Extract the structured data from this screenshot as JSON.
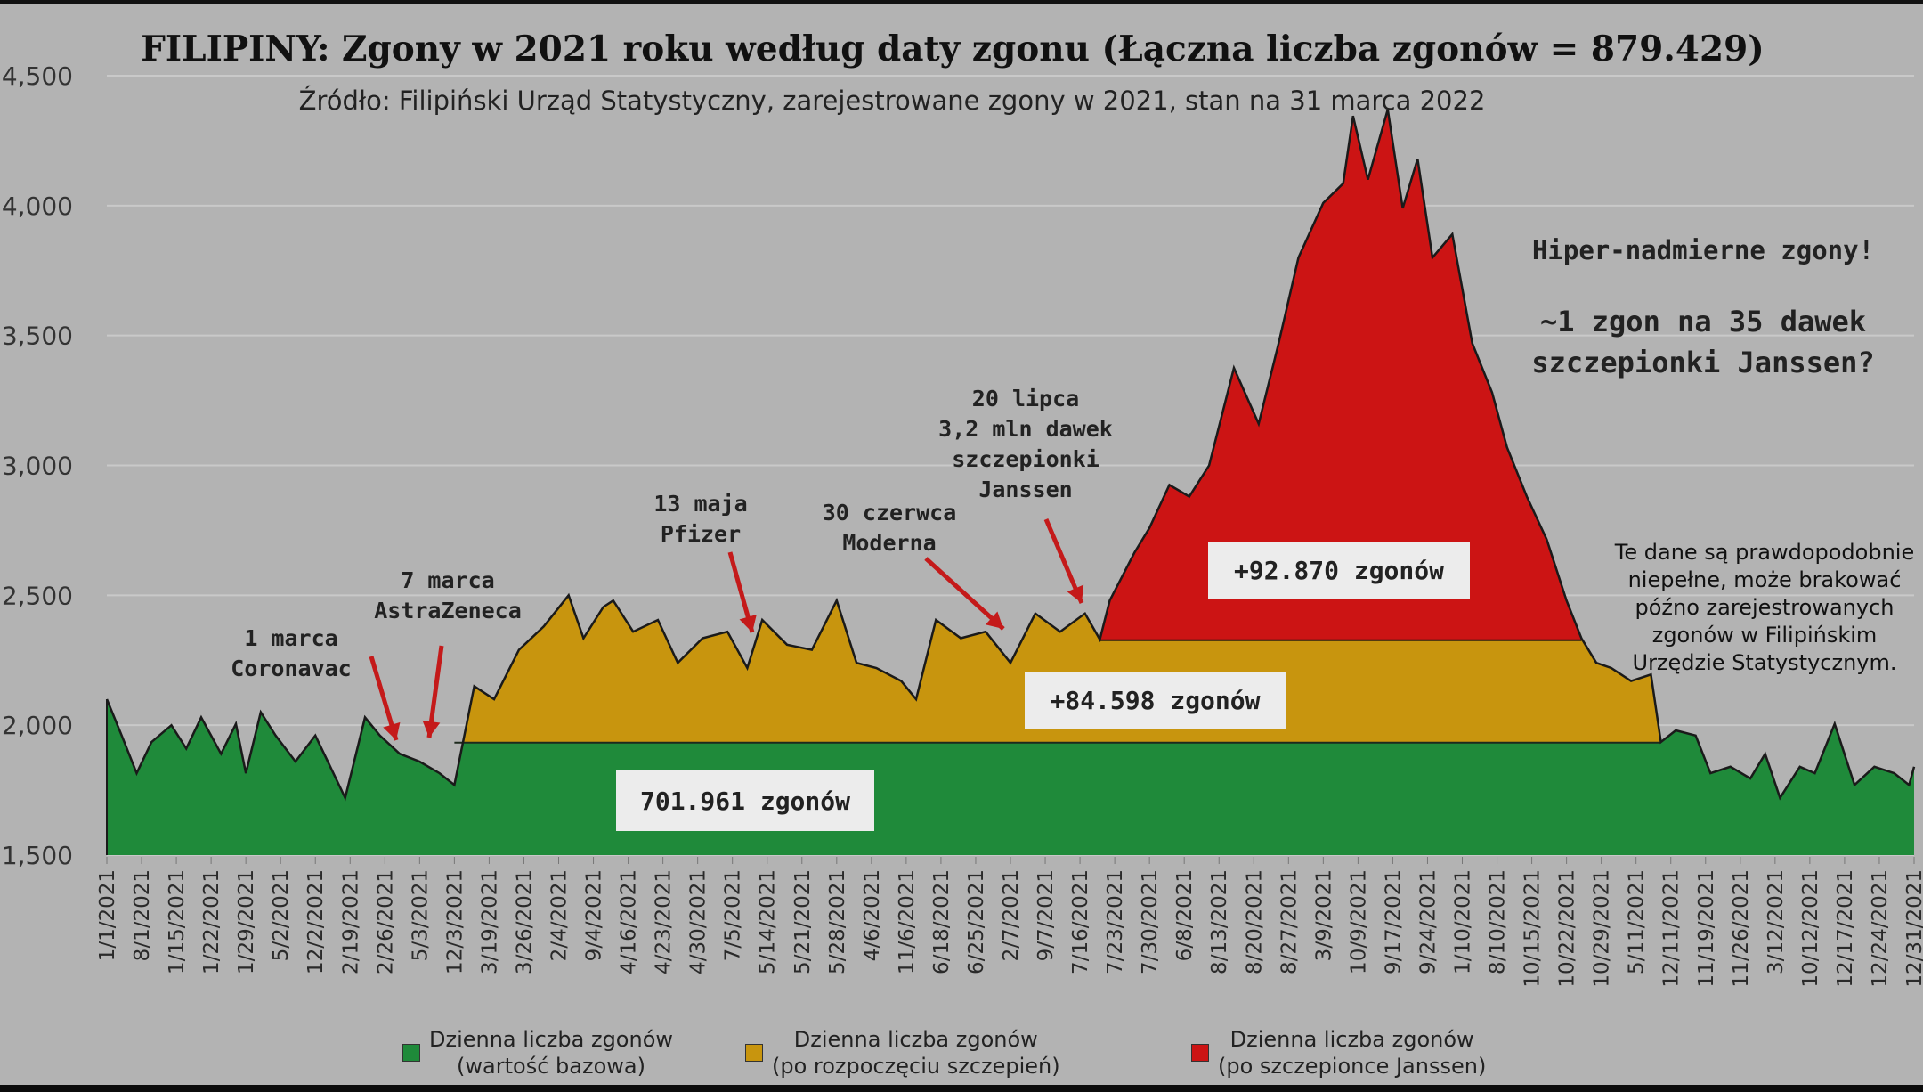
{
  "chart_data": {
    "type": "area",
    "title": "FILIPINY: Zgony w 2021 roku według daty zgonu (Łączna liczba zgonów = 879.429)",
    "subtitle": "Źródło: Filipiński Urząd Statystyczny, zarejestrowane zgony w 2021, stan na 31 marca 2022",
    "xlabel": "",
    "ylabel": "",
    "ylim": [
      1500,
      4500
    ],
    "xlim": [
      "2021-01-01",
      "2021-12-31"
    ],
    "grid": true,
    "yticks": [
      "1,500",
      "2,000",
      "2,500",
      "3,000",
      "3,500",
      "4,000",
      "4,500"
    ],
    "ytick_values": [
      1500,
      2000,
      2500,
      3000,
      3500,
      4000,
      4500
    ],
    "xticks": [
      "1/1/2021",
      "8/1/2021",
      "1/15/2021",
      "1/22/2021",
      "1/29/2021",
      "5/2/2021",
      "12/2/2021",
      "2/19/2021",
      "2/26/2021",
      "5/3/2021",
      "12/3/2021",
      "3/19/2021",
      "3/26/2021",
      "2/4/2021",
      "9/4/2021",
      "4/16/2021",
      "4/23/2021",
      "4/30/2021",
      "7/5/2021",
      "5/14/2021",
      "5/21/2021",
      "5/28/2021",
      "4/6/2021",
      "11/6/2021",
      "6/18/2021",
      "6/25/2021",
      "2/7/2021",
      "9/7/2021",
      "7/16/2021",
      "7/23/2021",
      "7/30/2021",
      "6/8/2021",
      "8/13/2021",
      "8/20/2021",
      "8/27/2021",
      "3/9/2021",
      "10/9/2021",
      "9/17/2021",
      "9/24/2021",
      "1/10/2021",
      "8/10/2021",
      "10/15/2021",
      "10/22/2021",
      "10/29/2021",
      "5/11/2021",
      "12/11/2021",
      "11/19/2021",
      "11/26/2021",
      "3/12/2021",
      "10/12/2021",
      "12/17/2021",
      "12/24/2021",
      "12/31/2021"
    ],
    "series_daily_deaths": {
      "x": [
        "2021-01-01",
        "2021-01-04",
        "2021-01-07",
        "2021-01-10",
        "2021-01-14",
        "2021-01-17",
        "2021-01-20",
        "2021-01-24",
        "2021-01-27",
        "2021-01-29",
        "2021-02-01",
        "2021-02-04",
        "2021-02-08",
        "2021-02-12",
        "2021-02-15",
        "2021-02-18",
        "2021-02-22",
        "2021-02-25",
        "2021-03-01",
        "2021-03-05",
        "2021-03-09",
        "2021-03-12",
        "2021-03-16",
        "2021-03-20",
        "2021-03-25",
        "2021-03-30",
        "2021-04-04",
        "2021-04-07",
        "2021-04-11",
        "2021-04-13",
        "2021-04-17",
        "2021-04-22",
        "2021-04-26",
        "2021-05-01",
        "2021-05-06",
        "2021-05-10",
        "2021-05-13",
        "2021-05-18",
        "2021-05-23",
        "2021-05-28",
        "2021-06-01",
        "2021-06-05",
        "2021-06-10",
        "2021-06-13",
        "2021-06-17",
        "2021-06-22",
        "2021-06-27",
        "2021-07-02",
        "2021-07-07",
        "2021-07-12",
        "2021-07-17",
        "2021-07-20",
        "2021-07-22",
        "2021-07-27",
        "2021-07-30",
        "2021-08-03",
        "2021-08-07",
        "2021-08-11",
        "2021-08-16",
        "2021-08-21",
        "2021-08-25",
        "2021-08-29",
        "2021-09-03",
        "2021-09-07",
        "2021-09-09",
        "2021-09-12",
        "2021-09-16",
        "2021-09-19",
        "2021-09-22",
        "2021-09-25",
        "2021-09-29",
        "2021-10-03",
        "2021-10-07",
        "2021-10-10",
        "2021-10-14",
        "2021-10-18",
        "2021-10-22",
        "2021-10-25",
        "2021-10-28",
        "2021-10-31",
        "2021-11-04",
        "2021-11-08",
        "2021-11-10",
        "2021-11-13",
        "2021-11-17",
        "2021-11-20",
        "2021-11-24",
        "2021-11-28",
        "2021-12-01",
        "2021-12-04",
        "2021-12-08",
        "2021-12-11",
        "2021-12-15",
        "2021-12-19",
        "2021-12-23",
        "2021-12-27",
        "2021-12-30",
        "2021-12-31"
      ],
      "y": [
        2100,
        1960,
        1815,
        1935,
        2000,
        1910,
        2030,
        1890,
        2005,
        1815,
        2050,
        1960,
        1860,
        1960,
        1840,
        1720,
        2030,
        1960,
        1890,
        1860,
        1815,
        1770,
        2150,
        2100,
        2290,
        2380,
        2500,
        2335,
        2455,
        2480,
        2360,
        2405,
        2240,
        2335,
        2360,
        2220,
        2405,
        2310,
        2290,
        2480,
        2240,
        2220,
        2170,
        2100,
        2405,
        2335,
        2360,
        2240,
        2430,
        2360,
        2430,
        2330,
        2480,
        2665,
        2760,
        2925,
        2880,
        3000,
        3375,
        3160,
        3470,
        3800,
        4010,
        4085,
        4345,
        4100,
        4370,
        3990,
        4180,
        3800,
        3890,
        3470,
        3280,
        3070,
        2880,
        2715,
        2480,
        2335,
        2240,
        2220,
        2170,
        2195,
        1935,
        1980,
        1960,
        1815,
        1840,
        1795,
        1890,
        1720,
        1840,
        1815,
        2005,
        1770,
        1840,
        1815,
        1770,
        1840
      ]
    },
    "baseline_level": 1933,
    "post_vaccination_level": 2327,
    "vaccination_period": [
      "2021-03-12",
      "2021-11-10"
    ],
    "janssen_period": [
      "2021-07-20",
      "2021-10-25"
    ],
    "colors": {
      "baseline": "#1f8a3a",
      "post_vaccination": "#c8950e",
      "janssen": "#cc1414",
      "arrow": "#c41a1a",
      "background": "#b3b3b3"
    },
    "legend": {
      "placement": "bottom",
      "items": [
        {
          "line1": "Dzienna liczba zgonów",
          "line2": "(wartość bazowa)",
          "color": "#1f8a3a"
        },
        {
          "line1": "Dzienna liczba zgonów",
          "line2": "(po rozpoczęciu szczepień)",
          "color": "#c8950e"
        },
        {
          "line1": "Dzienna liczba zgonów",
          "line2": "(po szczepionce Janssen)",
          "color": "#cc1414"
        }
      ]
    },
    "area_labels": {
      "baseline": "701.961 zgonów",
      "post_vaccination": "+84.598 zgonów",
      "janssen": "+92.870 zgonów"
    },
    "annotations": {
      "coronavac": [
        "1 marca",
        "Coronavac"
      ],
      "astrazeneca": [
        "7 marca",
        "AstraZeneca"
      ],
      "pfizer": [
        "13 maja",
        "Pfizer"
      ],
      "moderna": [
        "30 czerwca",
        "Moderna"
      ],
      "janssen": [
        "20 lipca",
        "3,2 mln dawek",
        "szczepionki",
        "Janssen"
      ],
      "headline": [
        "Hiper-nadmierne zgony!",
        "~1 zgon na 35 dawek",
        "szczepionki Janssen?"
      ],
      "note": [
        "Te dane są prawdopodobnie",
        "niepełne, może brakować",
        "późno zarejestrowanych",
        "zgonów w Filipińskim",
        "Urzędzie Statystycznym."
      ]
    }
  }
}
